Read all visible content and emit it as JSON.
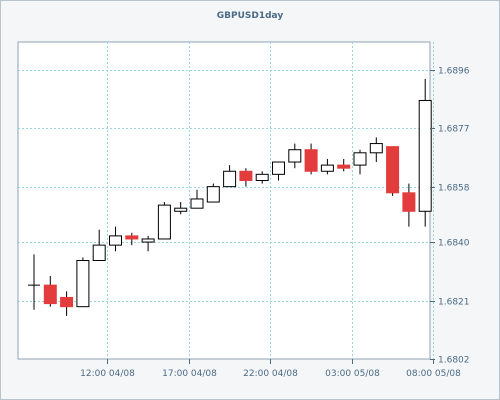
{
  "chart_data": {
    "type": "candlestick",
    "title": "GBPUSD1day",
    "y_axis": {
      "position": "right",
      "ylim": [
        1.6802,
        1.6905
      ],
      "ticks": [
        "1.6896",
        "1.6877",
        "1.6858",
        "1.6840",
        "1.6821",
        "1.6802"
      ]
    },
    "x_axis": {
      "ticks": [
        {
          "index": 4.5,
          "label": "12:00 04/08"
        },
        {
          "index": 9.5,
          "label": "17:00 04/08"
        },
        {
          "index": 14.5,
          "label": "22:00 04/08"
        },
        {
          "index": 19.5,
          "label": "03:00 05/08"
        },
        {
          "index": 24.5,
          "label": "08:00 05/08"
        }
      ]
    },
    "grid": true,
    "colors": {
      "up_fill": "#ffffff",
      "down_fill": "#e23c3c",
      "outline": "#000000",
      "grid": "#9ad6d6"
    },
    "candles": [
      {
        "o": 1.6826,
        "h": 1.6836,
        "l": 1.6818,
        "c": 1.6826
      },
      {
        "o": 1.6826,
        "h": 1.6829,
        "l": 1.6819,
        "c": 1.682
      },
      {
        "o": 1.6822,
        "h": 1.6824,
        "l": 1.6816,
        "c": 1.6819
      },
      {
        "o": 1.6819,
        "h": 1.6835,
        "l": 1.6819,
        "c": 1.6834
      },
      {
        "o": 1.6834,
        "h": 1.6844,
        "l": 1.6834,
        "c": 1.6839
      },
      {
        "o": 1.6839,
        "h": 1.6845,
        "l": 1.6837,
        "c": 1.6842
      },
      {
        "o": 1.6842,
        "h": 1.6843,
        "l": 1.6839,
        "c": 1.6841
      },
      {
        "o": 1.684,
        "h": 1.6842,
        "l": 1.6837,
        "c": 1.6841
      },
      {
        "o": 1.6841,
        "h": 1.6853,
        "l": 1.6841,
        "c": 1.6852
      },
      {
        "o": 1.685,
        "h": 1.6853,
        "l": 1.6849,
        "c": 1.6851
      },
      {
        "o": 1.6851,
        "h": 1.6857,
        "l": 1.6851,
        "c": 1.6854
      },
      {
        "o": 1.6853,
        "h": 1.6859,
        "l": 1.6853,
        "c": 1.6858
      },
      {
        "o": 1.6858,
        "h": 1.6865,
        "l": 1.6858,
        "c": 1.6863
      },
      {
        "o": 1.6863,
        "h": 1.6864,
        "l": 1.6858,
        "c": 1.686
      },
      {
        "o": 1.686,
        "h": 1.6863,
        "l": 1.6859,
        "c": 1.6862
      },
      {
        "o": 1.6862,
        "h": 1.6866,
        "l": 1.686,
        "c": 1.6866
      },
      {
        "o": 1.6866,
        "h": 1.6872,
        "l": 1.6864,
        "c": 1.687
      },
      {
        "o": 1.687,
        "h": 1.6872,
        "l": 1.6862,
        "c": 1.6863
      },
      {
        "o": 1.6863,
        "h": 1.6867,
        "l": 1.6862,
        "c": 1.6865
      },
      {
        "o": 1.6865,
        "h": 1.6867,
        "l": 1.6863,
        "c": 1.6864
      },
      {
        "o": 1.6865,
        "h": 1.687,
        "l": 1.6862,
        "c": 1.6869
      },
      {
        "o": 1.6869,
        "h": 1.6874,
        "l": 1.6866,
        "c": 1.6872
      },
      {
        "o": 1.6871,
        "h": 1.6871,
        "l": 1.6855,
        "c": 1.6856
      },
      {
        "o": 1.6856,
        "h": 1.6859,
        "l": 1.6845,
        "c": 1.685
      },
      {
        "o": 1.685,
        "h": 1.6893,
        "l": 1.6845,
        "c": 1.6886
      }
    ]
  }
}
